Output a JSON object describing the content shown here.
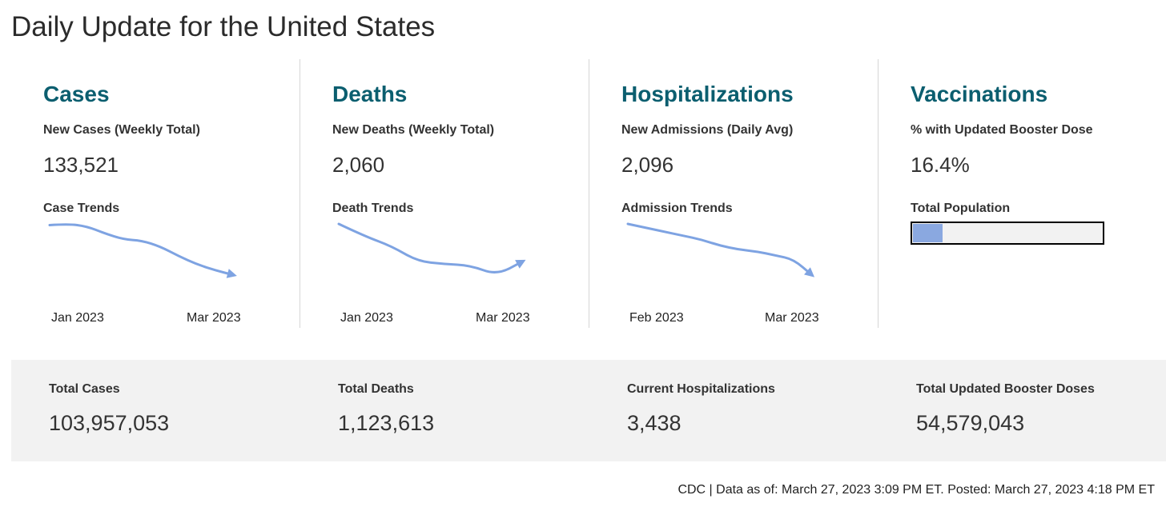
{
  "page": {
    "title": "Daily Update for the United States"
  },
  "colors": {
    "title_teal": "#0b5e6f",
    "trend_line": "#7ea3e2",
    "progress_fill": "#8aa8e0",
    "band_background": "#f2f2f2"
  },
  "cards": {
    "cases": {
      "title": "Cases",
      "metric_label": "New Cases (Weekly Total)",
      "metric_value": "133,521",
      "trend_label": "Case Trends",
      "axis_start": "Jan 2023",
      "axis_end": "Mar 2023",
      "trend_direction": "down",
      "trend": [
        44,
        45,
        43,
        37,
        32,
        31,
        26,
        18,
        11,
        6,
        2
      ]
    },
    "deaths": {
      "title": "Deaths",
      "metric_label": "New Deaths (Weekly Total)",
      "metric_value": "2,060",
      "trend_label": "Death Trends",
      "axis_start": "Jan 2023",
      "axis_end": "Mar 2023",
      "trend_direction": "up",
      "trend": [
        50,
        41,
        34,
        23,
        21,
        20,
        13,
        23
      ]
    },
    "hospitalizations": {
      "title": "Hospitalizations",
      "metric_label": "New Admissions (Daily Avg)",
      "metric_value": "2,096",
      "trend_label": "Admission Trends",
      "axis_start": "Feb 2023",
      "axis_end": "Mar 2023",
      "trend_direction": "down",
      "trend": [
        48,
        46,
        44,
        42,
        40,
        37,
        35,
        34,
        32,
        30,
        22
      ]
    },
    "vaccinations": {
      "title": "Vaccinations",
      "metric_label": "% with Updated Booster Dose",
      "metric_value": "16.4%",
      "bar_label": "Total Population",
      "bar_percent": 16.4
    }
  },
  "totals": {
    "cases": {
      "label": "Total Cases",
      "value": "103,957,053"
    },
    "deaths": {
      "label": "Total Deaths",
      "value": "1,123,613"
    },
    "hospitalizations": {
      "label": "Current Hospitalizations",
      "value": "3,438"
    },
    "boosters": {
      "label": "Total Updated Booster Doses",
      "value": "54,579,043"
    }
  },
  "footer": {
    "note": "CDC | Data as of: March 27, 2023 3:09 PM ET. Posted: March 27, 2023 4:18 PM ET"
  }
}
